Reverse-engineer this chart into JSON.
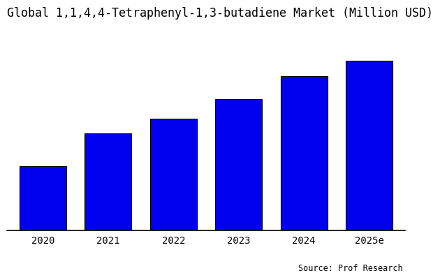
{
  "title": "Global 1,1,4,4-Tetraphenyl-1,3-butadiene Market (Million USD)",
  "categories": [
    "2020",
    "2021",
    "2022",
    "2023",
    "2024",
    "2025e"
  ],
  "values": [
    3.0,
    4.5,
    5.2,
    6.1,
    7.2,
    7.9
  ],
  "bar_color": "#0000EE",
  "bar_edgecolor": "#000000",
  "background_color": "#FFFFFF",
  "source_text": "Source: Prof Research",
  "title_fontsize": 12,
  "tick_fontsize": 10,
  "source_fontsize": 8.5,
  "bar_width": 0.72,
  "ylim_max": 9.5
}
